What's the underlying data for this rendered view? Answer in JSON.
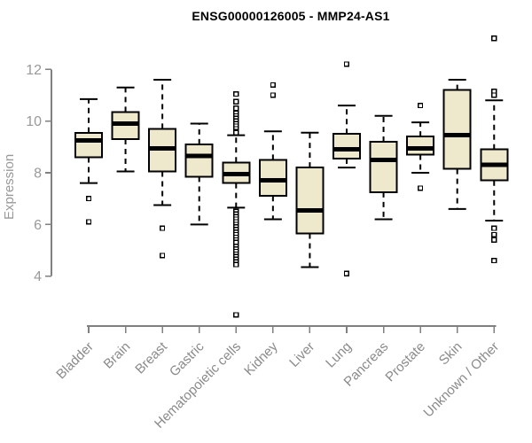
{
  "title": "ENSG00000126005 - MMP24-AS1",
  "ylabel": "Expression",
  "colors": {
    "background": "#ffffff",
    "title": "#000000",
    "box_fill": "#EEE8CD",
    "box_stroke": "#000000",
    "median": "#000000",
    "whisker": "#000000",
    "outlier_stroke": "#000000",
    "outlier_fill": "#ffffff",
    "axis_line": "#808080",
    "y_tick_label": "#999999",
    "x_tick_label": "#8a8a8a",
    "ylabel_color": "#999999"
  },
  "chart_data": {
    "type": "boxplot",
    "title": "ENSG00000126005 - MMP24-AS1",
    "xlabel": "",
    "ylabel": "Expression",
    "ylim": [
      4,
      12
    ],
    "yticks": [
      4,
      6,
      8,
      10,
      12
    ],
    "grid": false,
    "legend": "none",
    "categories": [
      "Bladder",
      "Brain",
      "Breast",
      "Gastric",
      "Hematopoietic cells",
      "Kidney",
      "Liver",
      "Lung",
      "Pancreas",
      "Prostate",
      "Skin",
      "Unknown / Other"
    ],
    "series": [
      {
        "name": "Bladder",
        "whisker_low": 7.6,
        "q1": 8.6,
        "median": 9.25,
        "q3": 9.55,
        "whisker_high": 10.85,
        "outliers": [
          7.0,
          6.1
        ]
      },
      {
        "name": "Brain",
        "whisker_low": 8.05,
        "q1": 9.3,
        "median": 9.9,
        "q3": 10.35,
        "whisker_high": 11.3,
        "outliers": []
      },
      {
        "name": "Breast",
        "whisker_low": 6.75,
        "q1": 8.05,
        "median": 8.95,
        "q3": 9.7,
        "whisker_high": 11.6,
        "outliers": [
          5.85,
          4.8
        ]
      },
      {
        "name": "Gastric",
        "whisker_low": 6.0,
        "q1": 7.85,
        "median": 8.65,
        "q3": 9.1,
        "whisker_high": 9.9,
        "outliers": []
      },
      {
        "name": "Hematopoietic cells",
        "whisker_low": 6.65,
        "q1": 7.6,
        "median": 7.95,
        "q3": 8.4,
        "whisker_high": 9.45,
        "outliers": [
          11.05,
          10.75,
          10.5,
          10.3,
          10.2,
          10.1,
          10.0,
          9.9,
          9.8,
          9.7,
          9.6,
          9.55,
          6.5,
          6.4,
          6.3,
          6.2,
          6.1,
          6.0,
          5.9,
          5.8,
          5.7,
          5.6,
          5.5,
          5.4,
          5.3,
          5.15,
          5.05,
          4.95,
          4.85,
          4.75,
          4.65,
          4.55,
          4.45,
          2.5
        ]
      },
      {
        "name": "Kidney",
        "whisker_low": 6.2,
        "q1": 7.1,
        "median": 7.7,
        "q3": 8.5,
        "whisker_high": 9.6,
        "outliers": [
          11.4,
          11.0
        ]
      },
      {
        "name": "Liver",
        "whisker_low": 4.35,
        "q1": 5.65,
        "median": 6.55,
        "q3": 8.2,
        "whisker_high": 9.55,
        "outliers": []
      },
      {
        "name": "Lung",
        "whisker_low": 8.2,
        "q1": 8.55,
        "median": 8.9,
        "q3": 9.5,
        "whisker_high": 10.6,
        "outliers": [
          12.2,
          4.1
        ]
      },
      {
        "name": "Pancreas",
        "whisker_low": 6.2,
        "q1": 7.25,
        "median": 8.5,
        "q3": 9.2,
        "whisker_high": 10.2,
        "outliers": []
      },
      {
        "name": "Prostate",
        "whisker_low": 8.0,
        "q1": 8.7,
        "median": 8.95,
        "q3": 9.4,
        "whisker_high": 9.95,
        "outliers": [
          10.6,
          7.4
        ]
      },
      {
        "name": "Skin",
        "whisker_low": 6.6,
        "q1": 8.15,
        "median": 9.45,
        "q3": 11.2,
        "whisker_high": 11.6,
        "outliers": []
      },
      {
        "name": "Unknown / Other",
        "whisker_low": 6.15,
        "q1": 7.7,
        "median": 8.3,
        "q3": 8.9,
        "whisker_high": 10.8,
        "outliers": [
          13.2,
          11.15,
          11.0,
          5.85,
          5.6,
          5.4,
          4.6
        ]
      }
    ]
  }
}
